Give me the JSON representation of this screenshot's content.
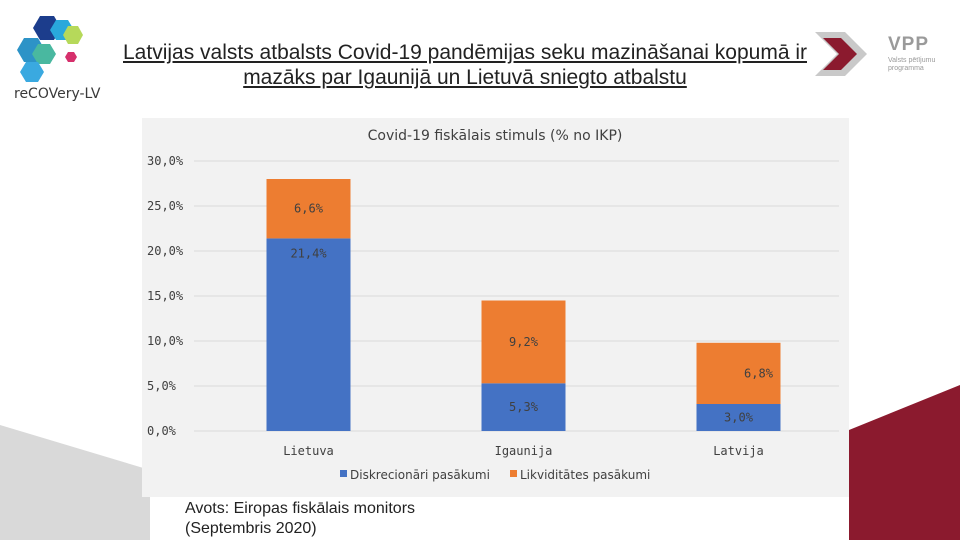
{
  "title": "Latvijas valsts atbalsts Covid-19 pandēmijas seku mazināšanai kopumā ir mazāks par Igaunijā un Lietuvā sniegto atbalstu",
  "logo_left": {
    "text": "reCOVery-LV"
  },
  "logo_right": {
    "name": "VPP",
    "subtitle_line1": "Valsts pētījumu",
    "subtitle_line2": "programma"
  },
  "source": {
    "line1": "Avots: Eiropas fiskālais monitors",
    "line2": "(Septembris 2020)"
  },
  "colors": {
    "discretionary": "#4472c4",
    "liquidity": "#ed7d31",
    "brand_red": "#8b1a2e",
    "gray_bg": "#d9d9d9"
  },
  "chart_data": {
    "type": "bar",
    "stacked": true,
    "title": "Covid-19 fiskālais stimuls (% no IKP)",
    "categories": [
      "Lietuva",
      "Igaunija",
      "Latvija"
    ],
    "series": [
      {
        "name": "Diskrecionāri pasākumi",
        "values": [
          21.4,
          5.3,
          3.0
        ],
        "labels": [
          "21,4%",
          "5,3%",
          "3,0%"
        ],
        "color": "#4472c4"
      },
      {
        "name": "Likviditātes pasākumi",
        "values": [
          6.6,
          9.2,
          6.8
        ],
        "labels": [
          "6,6%",
          "9,2%",
          "6,8%"
        ],
        "color": "#ed7d31"
      }
    ],
    "ylim": [
      0,
      30
    ],
    "yticks": [
      "0,0%",
      "5,0%",
      "10,0%",
      "15,0%",
      "20,0%",
      "25,0%",
      "30,0%"
    ],
    "grid": true,
    "legend": "bottom"
  }
}
